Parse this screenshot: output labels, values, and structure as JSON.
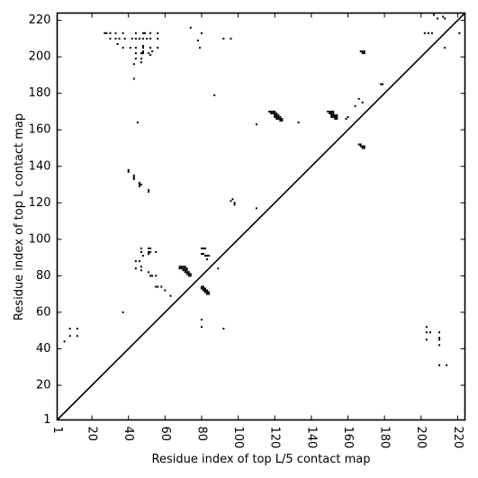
{
  "chart_data": {
    "type": "scatter",
    "title": "",
    "xlabel": "Residue index of top L/5 contact map",
    "ylabel": "Residue index of top L contact map",
    "xlim": [
      1,
      224
    ],
    "ylim": [
      1,
      224
    ],
    "x_ticks": [
      1,
      20,
      40,
      60,
      80,
      100,
      120,
      140,
      160,
      180,
      200,
      220
    ],
    "y_ticks": [
      1,
      20,
      40,
      60,
      80,
      100,
      120,
      140,
      160,
      180,
      200,
      220
    ],
    "x_tick_rotation": -90,
    "grid": false,
    "legend": "none",
    "marker_color": "#000000",
    "diagonal_line": {
      "from": [
        1,
        1
      ],
      "to": [
        224,
        224
      ],
      "color": "#000000"
    },
    "series": [
      {
        "region": "above-diagonal",
        "points": [
          [
            27,
            213
          ],
          [
            28,
            213
          ],
          [
            30,
            213
          ],
          [
            33,
            213
          ],
          [
            37,
            213
          ],
          [
            44,
            213
          ],
          [
            48,
            213
          ],
          [
            49,
            213
          ],
          [
            52,
            213
          ],
          [
            56,
            213
          ],
          [
            30,
            210
          ],
          [
            33,
            210
          ],
          [
            35,
            210
          ],
          [
            38,
            210
          ],
          [
            42,
            210
          ],
          [
            44,
            210
          ],
          [
            46,
            210
          ],
          [
            48,
            210
          ],
          [
            50,
            210
          ],
          [
            52,
            210
          ],
          [
            56,
            210
          ],
          [
            34,
            207
          ],
          [
            37,
            205
          ],
          [
            41,
            205
          ],
          [
            44,
            205
          ],
          [
            48,
            205
          ],
          [
            48,
            206
          ],
          [
            52,
            205
          ],
          [
            56,
            205
          ],
          [
            44,
            202
          ],
          [
            47,
            202
          ],
          [
            48,
            202
          ],
          [
            48,
            203
          ],
          [
            51,
            202
          ],
          [
            53,
            203
          ],
          [
            44,
            199
          ],
          [
            47,
            199
          ],
          [
            43,
            196
          ],
          [
            47,
            197
          ],
          [
            43,
            188
          ],
          [
            45,
            164
          ],
          [
            74,
            216
          ],
          [
            80,
            213
          ],
          [
            78,
            209
          ],
          [
            79,
            205
          ],
          [
            92,
            210
          ],
          [
            96,
            210
          ],
          [
            87,
            179
          ],
          [
            52,
            201
          ],
          [
            40,
            138
          ],
          [
            40,
            137
          ],
          [
            43,
            135
          ],
          [
            43,
            134
          ],
          [
            43,
            133
          ],
          [
            46,
            131
          ],
          [
            46,
            130
          ],
          [
            47,
            130
          ],
          [
            46,
            129
          ],
          [
            51,
            127
          ],
          [
            51,
            126
          ],
          [
            96,
            121
          ],
          [
            97,
            122
          ],
          [
            98,
            120
          ],
          [
            98,
            119
          ],
          [
            110,
            117
          ],
          [
            110,
            163
          ],
          [
            133,
            164
          ],
          [
            117,
            170
          ],
          [
            118,
            170
          ],
          [
            119,
            170
          ],
          [
            120,
            170
          ],
          [
            118,
            169
          ],
          [
            119,
            169
          ],
          [
            120,
            169
          ],
          [
            121,
            169
          ],
          [
            120,
            168
          ],
          [
            121,
            168
          ],
          [
            122,
            168
          ],
          [
            120,
            167
          ],
          [
            121,
            167
          ],
          [
            122,
            167
          ],
          [
            123,
            167
          ],
          [
            121,
            166
          ],
          [
            122,
            166
          ],
          [
            123,
            166
          ],
          [
            124,
            166
          ],
          [
            123,
            165
          ],
          [
            124,
            165
          ],
          [
            149,
            170
          ],
          [
            150,
            170
          ],
          [
            151,
            170
          ],
          [
            152,
            170
          ],
          [
            150,
            169
          ],
          [
            151,
            169
          ],
          [
            152,
            169
          ],
          [
            151,
            168
          ],
          [
            152,
            168
          ],
          [
            153,
            168
          ],
          [
            154,
            168
          ],
          [
            151,
            167
          ],
          [
            152,
            167
          ],
          [
            153,
            167
          ],
          [
            154,
            167
          ],
          [
            153,
            166
          ],
          [
            154,
            166
          ],
          [
            159,
            166
          ],
          [
            160,
            167
          ],
          [
            164,
            173
          ],
          [
            166,
            177
          ],
          [
            168,
            175
          ],
          [
            168,
            203
          ],
          [
            167,
            203
          ],
          [
            168,
            202
          ],
          [
            169,
            202
          ],
          [
            169,
            203
          ],
          [
            166,
            152
          ],
          [
            167,
            152
          ],
          [
            167,
            151
          ],
          [
            168,
            151
          ],
          [
            169,
            151
          ],
          [
            168,
            150
          ],
          [
            169,
            150
          ],
          [
            178,
            185
          ],
          [
            179,
            185
          ],
          [
            202,
            213
          ],
          [
            204,
            213
          ],
          [
            206,
            213
          ],
          [
            207,
            223
          ],
          [
            209,
            221
          ],
          [
            212,
            222
          ],
          [
            213,
            221
          ],
          [
            213,
            205
          ],
          [
            221,
            213
          ],
          [
            47,
            95
          ],
          [
            51,
            95
          ],
          [
            52,
            95
          ],
          [
            47,
            93
          ],
          [
            51,
            93
          ],
          [
            52,
            93
          ],
          [
            55,
            93
          ],
          [
            51,
            92
          ],
          [
            48,
            91
          ],
          [
            46,
            88
          ],
          [
            44,
            88
          ],
          [
            44,
            84
          ],
          [
            47,
            85
          ],
          [
            47,
            83
          ],
          [
            51,
            82
          ],
          [
            52,
            80
          ],
          [
            53,
            80
          ],
          [
            55,
            80
          ],
          [
            55,
            74
          ],
          [
            56,
            74
          ],
          [
            58,
            74
          ],
          [
            60,
            72
          ],
          [
            63,
            69
          ],
          [
            37,
            60
          ],
          [
            68,
            85
          ],
          [
            69,
            85
          ],
          [
            70,
            85
          ],
          [
            71,
            85
          ],
          [
            68,
            84
          ],
          [
            69,
            84
          ],
          [
            70,
            84
          ],
          [
            71,
            84
          ],
          [
            72,
            84
          ],
          [
            70,
            83
          ],
          [
            71,
            83
          ],
          [
            72,
            83
          ],
          [
            71,
            82
          ],
          [
            72,
            82
          ],
          [
            73,
            82
          ],
          [
            72,
            81
          ],
          [
            73,
            81
          ],
          [
            74,
            81
          ],
          [
            73,
            80
          ],
          [
            74,
            80
          ],
          [
            80,
            95
          ],
          [
            81,
            95
          ],
          [
            82,
            95
          ],
          [
            80,
            92
          ],
          [
            81,
            92
          ],
          [
            82,
            91
          ],
          [
            83,
            91
          ],
          [
            84,
            91
          ],
          [
            83,
            89
          ],
          [
            89,
            84
          ],
          [
            80,
            74
          ],
          [
            81,
            74
          ],
          [
            80,
            73
          ],
          [
            81,
            73
          ],
          [
            82,
            73
          ],
          [
            81,
            72
          ],
          [
            82,
            72
          ],
          [
            83,
            72
          ],
          [
            82,
            71
          ],
          [
            83,
            71
          ],
          [
            84,
            71
          ],
          [
            83,
            70
          ],
          [
            84,
            70
          ],
          [
            80,
            56
          ],
          [
            80,
            52
          ],
          [
            92,
            51
          ],
          [
            8,
            51
          ],
          [
            12,
            51
          ],
          [
            8,
            47
          ],
          [
            12,
            47
          ],
          [
            5,
            44
          ],
          [
            203,
            52
          ],
          [
            203,
            49
          ],
          [
            205,
            49
          ],
          [
            210,
            49
          ],
          [
            210,
            46
          ],
          [
            203,
            45
          ],
          [
            210,
            45
          ],
          [
            210,
            42
          ],
          [
            210,
            31
          ],
          [
            214,
            31
          ]
        ]
      }
    ]
  }
}
